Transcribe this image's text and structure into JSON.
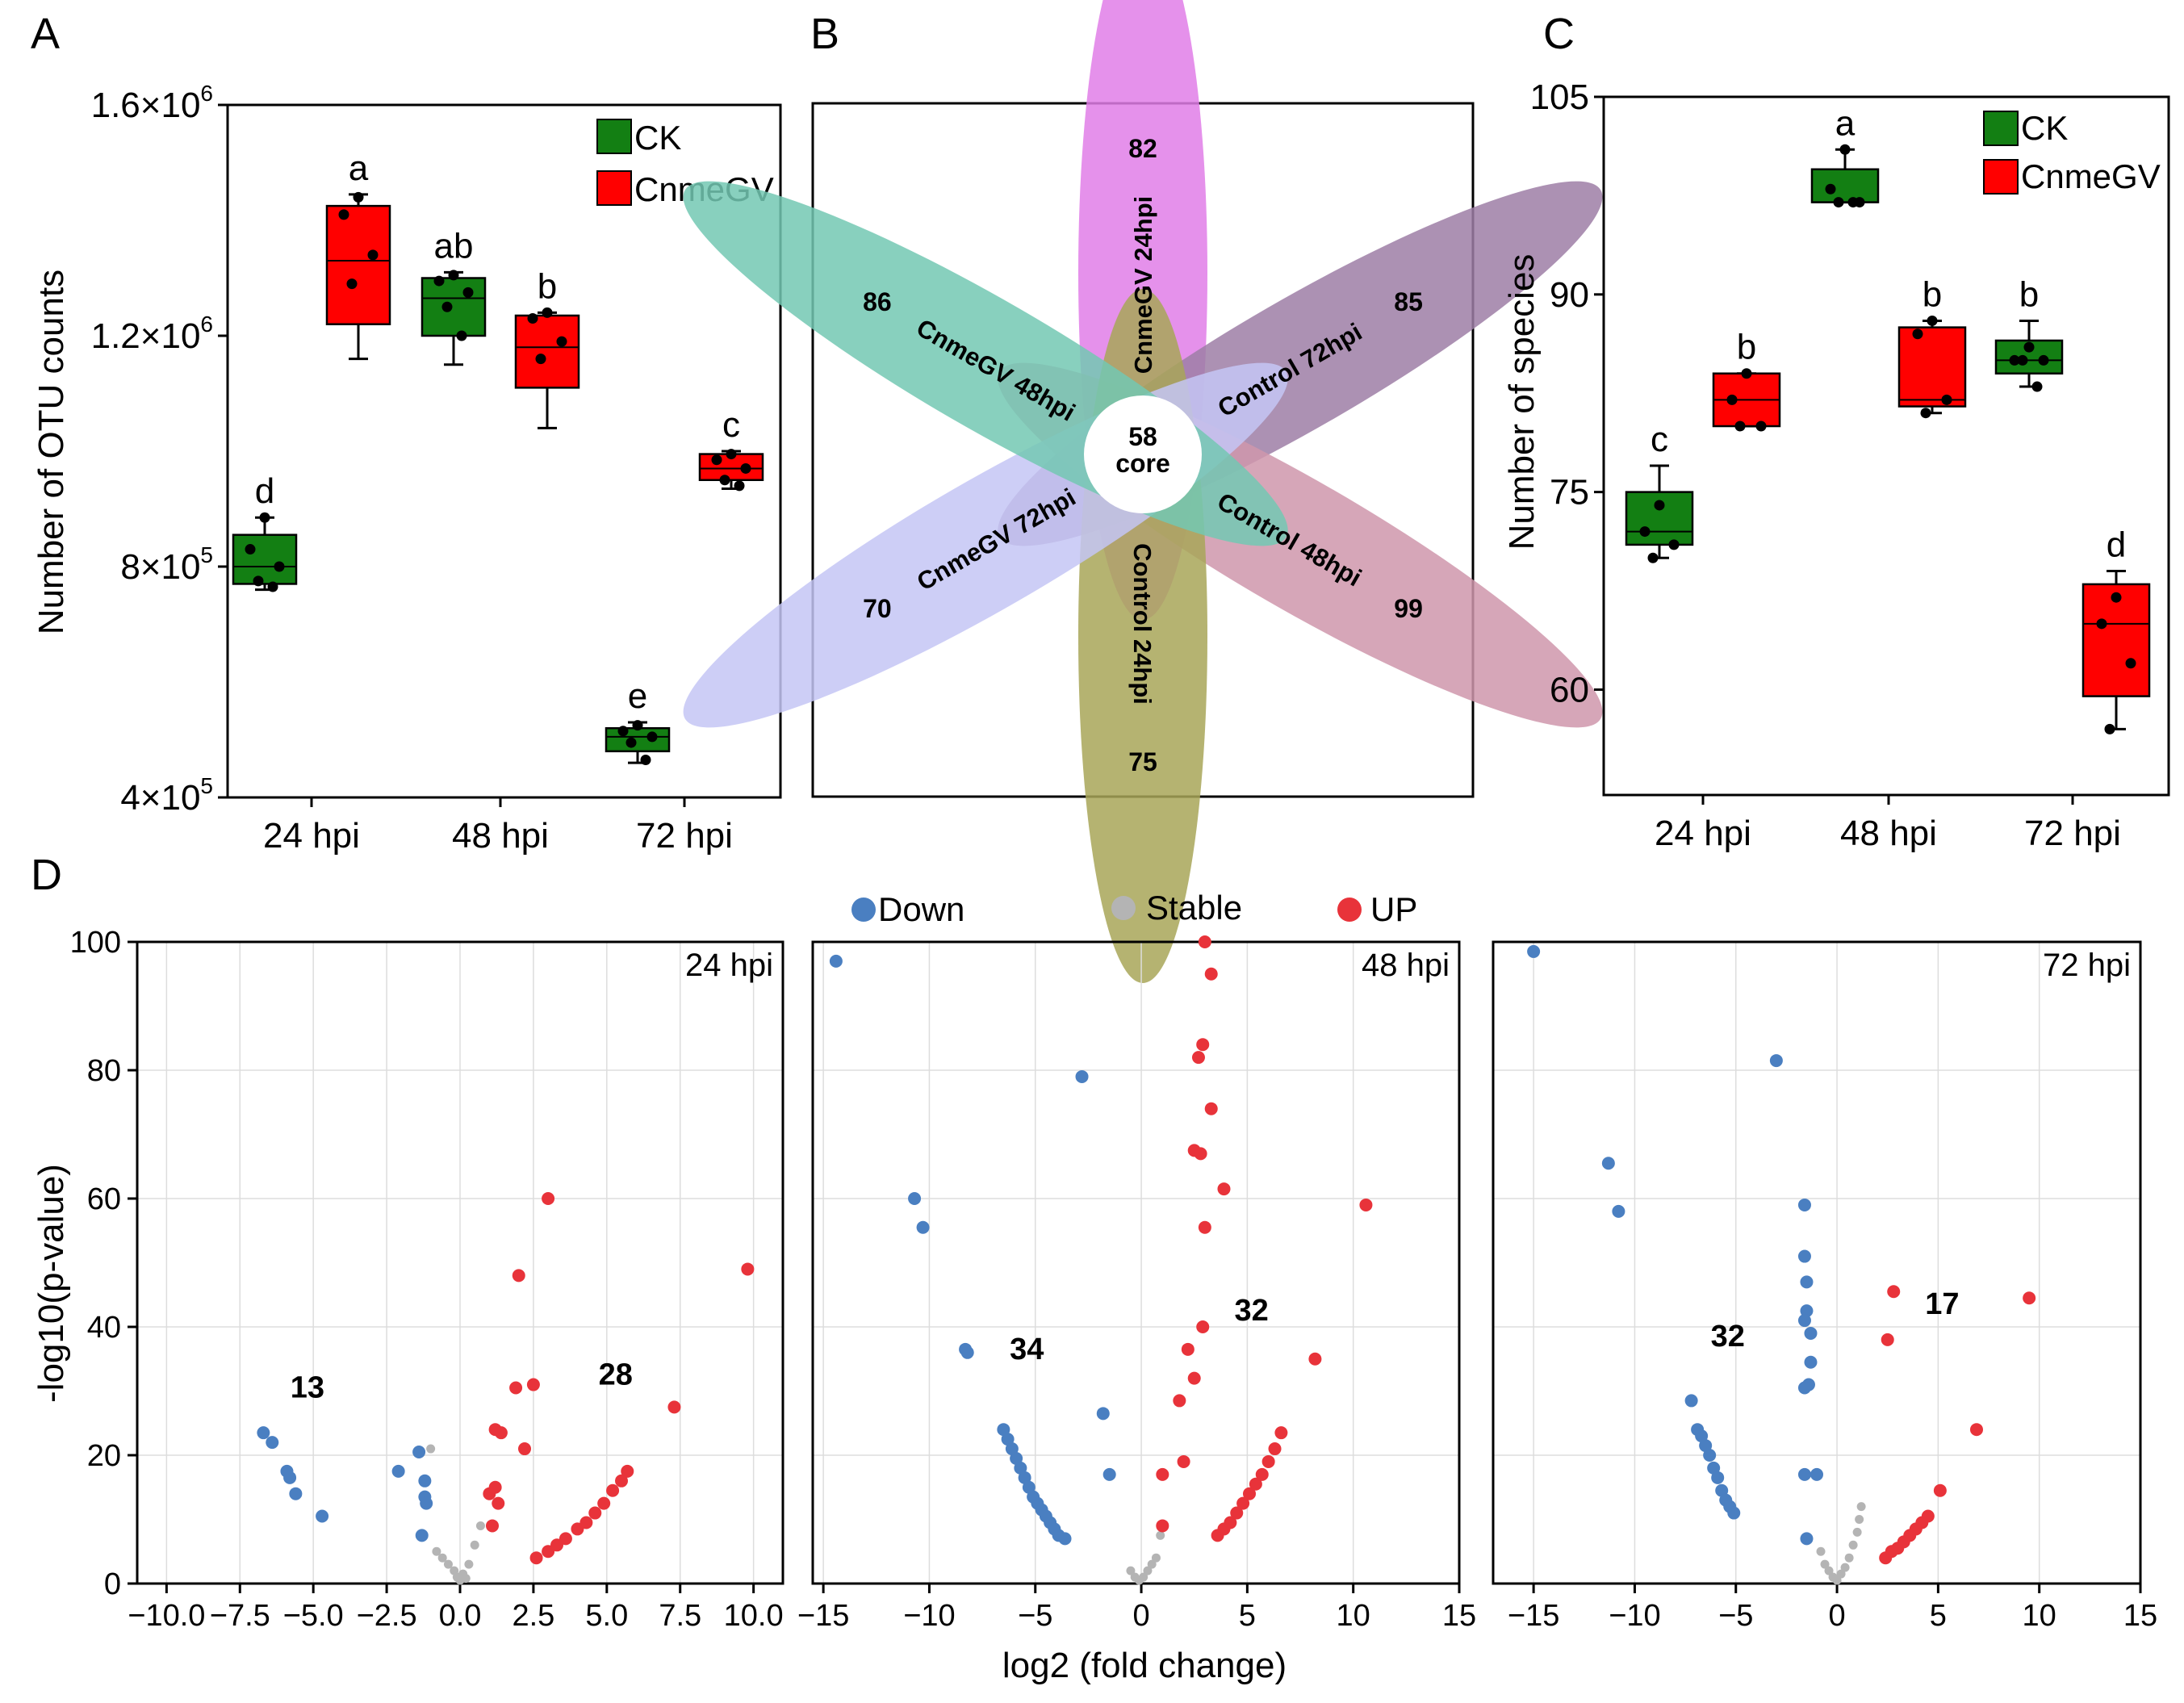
{
  "panel_letters": {
    "a": "A",
    "b": "B",
    "c": "C",
    "d": "D"
  },
  "colors": {
    "ck": "#137f13",
    "cnmegv": "#ff0000",
    "down": "#4a7fc1",
    "stable": "#b4b4b4",
    "up": "#e8333a"
  },
  "chart_data": [
    {
      "id": "A",
      "type": "box",
      "ylabel": "Number of OTU counts",
      "ylim": [
        400000,
        1600000
      ],
      "y_tick_labels": [
        {
          "base": "4×10",
          "exp": "5",
          "value": 400000
        },
        {
          "base": "8×10",
          "exp": "5",
          "value": 800000
        },
        {
          "base": "1.2×10",
          "exp": "6",
          "value": 1200000
        },
        {
          "base": "1.6×10",
          "exp": "6",
          "value": 1600000
        }
      ],
      "categories": [
        "24 hpi",
        "48 hpi",
        "72 hpi"
      ],
      "legend": [
        {
          "name": "CK",
          "color": "#137f13"
        },
        {
          "name": "CnmeGV",
          "color": "#ff0000"
        }
      ],
      "boxes": [
        {
          "cat": 0,
          "series": "CK",
          "min": 760000,
          "q1": 770000,
          "median": 800000,
          "q3": 855000,
          "max": 885000,
          "points": [
            885000,
            830000,
            800000,
            775000,
            765000
          ],
          "letter": "d"
        },
        {
          "cat": 0,
          "series": "CnmeGV",
          "min": 1160000,
          "q1": 1220000,
          "median": 1330000,
          "q3": 1425000,
          "max": 1445000,
          "points": [
            1440000,
            1410000,
            1340000,
            1290000
          ],
          "letter": "a"
        },
        {
          "cat": 1,
          "series": "CK",
          "min": 1150000,
          "q1": 1200000,
          "median": 1265000,
          "q3": 1300000,
          "max": 1310000,
          "points": [
            1305000,
            1295000,
            1275000,
            1250000,
            1200000
          ],
          "letter": "ab"
        },
        {
          "cat": 1,
          "series": "CnmeGV",
          "min": 1040000,
          "q1": 1110000,
          "median": 1180000,
          "q3": 1235000,
          "max": 1240000,
          "points": [
            1240000,
            1230000,
            1190000,
            1160000
          ],
          "letter": "b"
        },
        {
          "cat": 2,
          "series": "CK",
          "min": 460000,
          "q1": 480000,
          "median": 505000,
          "q3": 520000,
          "max": 530000,
          "points": [
            525000,
            515000,
            505000,
            495000,
            465000
          ],
          "letter": "e"
        },
        {
          "cat": 2,
          "series": "CnmeGV",
          "min": 935000,
          "q1": 950000,
          "median": 970000,
          "q3": 995000,
          "max": 1000000,
          "points": [
            995000,
            985000,
            970000,
            950000,
            940000
          ],
          "letter": "c"
        }
      ]
    },
    {
      "id": "B",
      "type": "flower",
      "core": {
        "value": "58",
        "label": "core"
      },
      "petals": [
        {
          "label": "CnmeGV 24hpi",
          "count": "82",
          "color": "#e07ee8"
        },
        {
          "label": "Control 72hpi",
          "count": "85",
          "color": "#9e7ea6"
        },
        {
          "label": "Control 48hpi",
          "count": "99",
          "color": "#cf96ab"
        },
        {
          "label": "Control 24hpi",
          "count": "75",
          "color": "#a8a658"
        },
        {
          "label": "CnmeGV 72hpi",
          "count": "70",
          "color": "#c4c6f4"
        },
        {
          "label": "CnmeGV 48hpi",
          "count": "86",
          "color": "#73c8b3"
        }
      ]
    },
    {
      "id": "C",
      "type": "box",
      "ylabel": "Number of species",
      "ylim": [
        52,
        105
      ],
      "y_ticks": [
        60,
        75,
        90,
        105
      ],
      "categories": [
        "24 hpi",
        "48 hpi",
        "72 hpi"
      ],
      "legend": [
        {
          "name": "CK",
          "color": "#137f13"
        },
        {
          "name": "CnmeGV",
          "color": "#ff0000"
        }
      ],
      "boxes": [
        {
          "cat": 0,
          "series": "CK",
          "min": 70,
          "q1": 71,
          "median": 72,
          "q3": 75,
          "max": 77,
          "points": [
            74,
            72,
            71,
            70
          ],
          "letter": "c"
        },
        {
          "cat": 0,
          "series": "CnmeGV",
          "min": 80,
          "q1": 80,
          "median": 82,
          "q3": 84,
          "max": 84,
          "points": [
            84,
            82,
            80,
            80
          ],
          "letter": "b"
        },
        {
          "cat": 1,
          "series": "CK",
          "min": 97,
          "q1": 97,
          "median": 97,
          "q3": 99.5,
          "max": 101,
          "points": [
            101,
            98,
            97,
            97,
            97
          ],
          "letter": "a"
        },
        {
          "cat": 1,
          "series": "CnmeGV",
          "min": 81,
          "q1": 81.5,
          "median": 82,
          "q3": 87.5,
          "max": 88,
          "points": [
            88,
            87,
            82,
            81
          ],
          "letter": "b"
        },
        {
          "cat": 2,
          "series": "CK",
          "min": 83,
          "q1": 84,
          "median": 85,
          "q3": 86.5,
          "max": 88,
          "points": [
            86,
            85,
            85,
            85,
            83
          ],
          "letter": "b"
        },
        {
          "cat": 2,
          "series": "CnmeGV",
          "min": 57,
          "q1": 59.5,
          "median": 65,
          "q3": 68,
          "max": 69,
          "points": [
            67,
            65,
            62,
            57
          ],
          "letter": "d"
        }
      ]
    },
    {
      "id": "D",
      "type": "scatter",
      "ylabel": "-log10(p-value)",
      "xlabel": "log2 (fold change)",
      "ylim": [
        0,
        100
      ],
      "y_ticks": [
        0,
        20,
        40,
        60,
        80,
        100
      ],
      "legend": [
        {
          "name": "Down",
          "color": "#4a7fc1"
        },
        {
          "name": "Stable",
          "color": "#b4b4b4"
        },
        {
          "name": "UP",
          "color": "#e8333a"
        }
      ],
      "panels": [
        {
          "label": "24 hpi",
          "xlim": [
            -11,
            11
          ],
          "x_tick_labels": [
            "−10.0",
            "−7.5",
            "−5.0",
            "−2.5",
            "0.0",
            "2.5",
            "5.0",
            "7.5",
            "10.0"
          ],
          "x_tick_values": [
            -10,
            -7.5,
            -5,
            -2.5,
            0,
            2.5,
            5,
            7.5,
            10
          ],
          "down_count": "13",
          "down_count_at": [
            -5.2,
            29
          ],
          "up_count": "28",
          "up_count_at": [
            5.3,
            31
          ],
          "down": [
            [
              -6.7,
              23.5
            ],
            [
              -6.4,
              22
            ],
            [
              -5.9,
              17.5
            ],
            [
              -5.8,
              16.5
            ],
            [
              -5.6,
              14
            ],
            [
              -4.7,
              10.5
            ],
            [
              -2.1,
              17.5
            ],
            [
              -1.4,
              20.5
            ],
            [
              -1.2,
              16
            ],
            [
              -1.2,
              13.5
            ],
            [
              -1.15,
              12.5
            ],
            [
              -1.3,
              7.5
            ]
          ],
          "stable": [
            [
              -1.0,
              21
            ],
            [
              -0.8,
              5
            ],
            [
              -0.6,
              4
            ],
            [
              -0.4,
              3
            ],
            [
              -0.2,
              2
            ],
            [
              -0.1,
              1
            ],
            [
              0.0,
              0.5
            ],
            [
              0.1,
              1.5
            ],
            [
              0.2,
              0.8
            ],
            [
              0.3,
              3
            ],
            [
              0.5,
              6
            ],
            [
              0.7,
              9
            ]
          ],
          "up": [
            [
              3.0,
              60
            ],
            [
              2.0,
              48
            ],
            [
              9.8,
              49
            ],
            [
              7.3,
              27.5
            ],
            [
              1.2,
              24
            ],
            [
              1.4,
              23.5
            ],
            [
              1.9,
              30.5
            ],
            [
              2.5,
              31
            ],
            [
              2.2,
              21
            ],
            [
              1.0,
              14
            ],
            [
              1.2,
              15
            ],
            [
              1.3,
              12.5
            ],
            [
              1.1,
              9
            ],
            [
              2.6,
              4
            ],
            [
              3.0,
              5
            ],
            [
              3.3,
              6
            ],
            [
              3.6,
              7
            ],
            [
              4.0,
              8.5
            ],
            [
              4.3,
              9.5
            ],
            [
              4.6,
              11
            ],
            [
              4.9,
              12.5
            ],
            [
              5.2,
              14.5
            ],
            [
              5.5,
              16
            ],
            [
              5.7,
              17.5
            ]
          ]
        },
        {
          "label": "48 hpi",
          "xlim": [
            -15.5,
            15
          ],
          "x_tick_labels": [
            "−15",
            "−10",
            "−5",
            "0",
            "5",
            "10",
            "15"
          ],
          "x_tick_values": [
            -15,
            -10,
            -5,
            0,
            5,
            10,
            15
          ],
          "down_count": "34",
          "down_count_at": [
            -5.4,
            35
          ],
          "up_count": "32",
          "up_count_at": [
            5.2,
            41
          ],
          "down": [
            [
              -14.4,
              97
            ],
            [
              -2.8,
              79
            ],
            [
              -10.7,
              60
            ],
            [
              -10.3,
              55.5
            ],
            [
              -8.3,
              36.5
            ],
            [
              -8.2,
              36
            ],
            [
              -1.8,
              26.5
            ],
            [
              -1.5,
              17
            ],
            [
              -6.5,
              24
            ],
            [
              -6.3,
              22.5
            ],
            [
              -6.1,
              21
            ],
            [
              -5.9,
              19.5
            ],
            [
              -5.7,
              18
            ],
            [
              -5.5,
              16.5
            ],
            [
              -5.3,
              15
            ],
            [
              -5.1,
              13.5
            ],
            [
              -4.9,
              12.5
            ],
            [
              -4.7,
              11.5
            ],
            [
              -4.5,
              10.5
            ],
            [
              -4.3,
              9.5
            ],
            [
              -4.1,
              8.5
            ],
            [
              -3.9,
              7.5
            ],
            [
              -3.6,
              7
            ]
          ],
          "stable": [
            [
              -0.5,
              2
            ],
            [
              -0.3,
              1
            ],
            [
              -0.1,
              0.5
            ],
            [
              0.1,
              1
            ],
            [
              0.3,
              2
            ],
            [
              0.5,
              3
            ],
            [
              0.7,
              4
            ],
            [
              0.9,
              7.5
            ],
            [
              1.0,
              9
            ]
          ],
          "up": [
            [
              3.0,
              100
            ],
            [
              3.3,
              95
            ],
            [
              2.9,
              84
            ],
            [
              2.7,
              82
            ],
            [
              3.3,
              74
            ],
            [
              2.5,
              67.5
            ],
            [
              2.8,
              67
            ],
            [
              3.9,
              61.5
            ],
            [
              3.0,
              55.5
            ],
            [
              10.6,
              59
            ],
            [
              2.9,
              40
            ],
            [
              2.2,
              36.5
            ],
            [
              2.5,
              32
            ],
            [
              8.2,
              35
            ],
            [
              1.8,
              28.5
            ],
            [
              2.0,
              19
            ],
            [
              1.0,
              17
            ],
            [
              1.0,
              9
            ],
            [
              3.6,
              7.5
            ],
            [
              3.9,
              8.5
            ],
            [
              4.2,
              9.5
            ],
            [
              4.5,
              11
            ],
            [
              4.8,
              12.5
            ],
            [
              5.1,
              14
            ],
            [
              5.4,
              15.5
            ],
            [
              5.7,
              17
            ],
            [
              6.0,
              19
            ],
            [
              6.3,
              21
            ],
            [
              6.6,
              23.5
            ]
          ]
        },
        {
          "label": "72 hpi",
          "xlim": [
            -17,
            15
          ],
          "x_tick_labels": [
            "−15",
            "−10",
            "−5",
            "0",
            "5",
            "10",
            "15"
          ],
          "x_tick_values": [
            -15,
            -10,
            -5,
            0,
            5,
            10,
            15
          ],
          "down_count": "32",
          "down_count_at": [
            -5.4,
            37
          ],
          "up_count": "17",
          "up_count_at": [
            5.2,
            42
          ],
          "down": [
            [
              -15.0,
              98.5
            ],
            [
              -3.0,
              81.5
            ],
            [
              -11.3,
              65.5
            ],
            [
              -10.8,
              58
            ],
            [
              -1.6,
              59
            ],
            [
              -1.6,
              51
            ],
            [
              -1.5,
              47
            ],
            [
              -1.5,
              42.5
            ],
            [
              -1.6,
              41
            ],
            [
              -1.3,
              39
            ],
            [
              -1.3,
              34.5
            ],
            [
              -1.4,
              31
            ],
            [
              -1.6,
              30.5
            ],
            [
              -1.6,
              17
            ],
            [
              -1.0,
              17
            ],
            [
              -1.5,
              7
            ],
            [
              -7.2,
              28.5
            ],
            [
              -6.9,
              24
            ],
            [
              -6.7,
              23
            ],
            [
              -6.5,
              21.5
            ],
            [
              -6.3,
              20
            ],
            [
              -6.1,
              18
            ],
            [
              -5.9,
              16.5
            ],
            [
              -5.7,
              14.5
            ],
            [
              -5.5,
              13
            ],
            [
              -5.3,
              12
            ],
            [
              -5.1,
              11
            ]
          ],
          "stable": [
            [
              -0.8,
              5
            ],
            [
              -0.6,
              3
            ],
            [
              -0.4,
              2
            ],
            [
              -0.2,
              1
            ],
            [
              0.0,
              0.5
            ],
            [
              0.2,
              1.5
            ],
            [
              0.4,
              2.5
            ],
            [
              0.6,
              4
            ],
            [
              0.8,
              6
            ],
            [
              1.0,
              8
            ],
            [
              1.1,
              10
            ],
            [
              1.2,
              12
            ]
          ],
          "up": [
            [
              2.8,
              45.5
            ],
            [
              9.5,
              44.5
            ],
            [
              2.5,
              38
            ],
            [
              6.9,
              24
            ],
            [
              5.1,
              14.5
            ],
            [
              2.4,
              4
            ],
            [
              2.7,
              5
            ],
            [
              3.0,
              5.5
            ],
            [
              3.3,
              6.5
            ],
            [
              3.6,
              7.5
            ],
            [
              3.9,
              8.5
            ],
            [
              4.2,
              9.5
            ],
            [
              4.5,
              10.5
            ]
          ]
        }
      ]
    }
  ]
}
